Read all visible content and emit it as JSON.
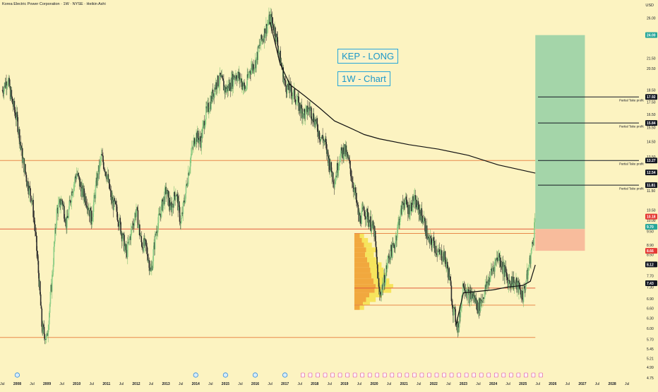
{
  "header": {
    "title": "Korea Electric Power Corporation · 1W · NYSE · Heikin Ashi",
    "currency": "USD"
  },
  "annotations": [
    "KEP - LONG",
    "1W - Chart"
  ],
  "colors": {
    "background": "#fcf3c1",
    "candle_up": "#8fcf8a",
    "candle_down": "#2b2b2b",
    "level_line": "#e8894a",
    "target_zone": "#9fd3a8",
    "stop_zone": "#f8b89a",
    "label_teal": "#26a69a",
    "label_red": "#e53935",
    "label_dark": "#131722",
    "volume_profile": "#f0a030"
  },
  "chart_data": {
    "type": "candlestick",
    "title": "Korea Electric Power Corporation · 1W · NYSE · Heikin Ashi",
    "x_range": [
      "2007-06",
      "2028-12"
    ],
    "y_range": [
      4.75,
      26.5
    ],
    "y_ticks": [
      26.0,
      24.0,
      21.5,
      20.5,
      18.5,
      17.5,
      16.5,
      15.5,
      14.5,
      13.5,
      12.5,
      11.5,
      10.5,
      10.0,
      9.5,
      8.9,
      8.5,
      8.1,
      7.7,
      7.3,
      6.9,
      6.6,
      6.3,
      6.0,
      5.7,
      5.45,
      5.21,
      4.99,
      4.75
    ],
    "y_tick_labels": [
      "26.00",
      "24.00",
      "21.50",
      "20.50",
      "18.50",
      "17.50",
      "16.50",
      "15.50",
      "14.50",
      "13.50",
      "12.50",
      "11.50",
      "10.50",
      "10.00",
      "9.50",
      "8.90",
      "8.50",
      "8.10",
      "7.70",
      "7.30",
      "6.90",
      "6.60",
      "6.30",
      "6.00",
      "5.70",
      "5.45",
      "5.21",
      "4.99",
      "4.75"
    ],
    "x_ticks": [
      "Jul",
      "2008",
      "Jul",
      "2009",
      "Jul",
      "2010",
      "Jul",
      "2011",
      "Jul",
      "2012",
      "Jul",
      "2013",
      "Jul",
      "2014",
      "Jul",
      "2015",
      "Jul",
      "2016",
      "Jul",
      "2017",
      "Jul",
      "2018",
      "Jul",
      "2019",
      "Jul",
      "2020",
      "Jul",
      "2021",
      "Jul",
      "2022",
      "Jul",
      "2023",
      "Jul",
      "2024",
      "Jul",
      "2025",
      "Jul",
      "2026",
      "Jul",
      "2027",
      "Jul",
      "2028",
      "Jul"
    ],
    "price_path": [
      [
        "2007-07",
        18.5
      ],
      [
        "2007-09",
        19.5
      ],
      [
        "2007-11",
        17.5
      ],
      [
        "2008-01",
        16.0
      ],
      [
        "2008-03",
        13.5
      ],
      [
        "2008-05",
        12.0
      ],
      [
        "2008-07",
        11.0
      ],
      [
        "2008-09",
        8.5
      ],
      [
        "2008-11",
        6.0
      ],
      [
        "2009-01",
        5.7
      ],
      [
        "2009-03",
        7.5
      ],
      [
        "2009-05",
        10.5
      ],
      [
        "2009-07",
        11.0
      ],
      [
        "2009-09",
        9.8
      ],
      [
        "2009-11",
        11.5
      ],
      [
        "2010-01",
        12.5
      ],
      [
        "2010-03",
        11.5
      ],
      [
        "2010-05",
        11.0
      ],
      [
        "2010-07",
        10.0
      ],
      [
        "2010-09",
        12.0
      ],
      [
        "2010-11",
        13.5
      ],
      [
        "2011-01",
        12.5
      ],
      [
        "2011-03",
        11.0
      ],
      [
        "2011-05",
        10.5
      ],
      [
        "2011-07",
        9.5
      ],
      [
        "2011-09",
        8.5
      ],
      [
        "2011-11",
        9.5
      ],
      [
        "2012-01",
        10.5
      ],
      [
        "2012-03",
        9.0
      ],
      [
        "2012-05",
        8.8
      ],
      [
        "2012-07",
        7.8
      ],
      [
        "2012-09",
        9.5
      ],
      [
        "2012-11",
        10.5
      ],
      [
        "2013-01",
        11.5
      ],
      [
        "2013-03",
        10.5
      ],
      [
        "2013-05",
        11.5
      ],
      [
        "2013-07",
        9.8
      ],
      [
        "2013-09",
        11.5
      ],
      [
        "2013-11",
        13.5
      ],
      [
        "2014-01",
        15.0
      ],
      [
        "2014-03",
        14.5
      ],
      [
        "2014-05",
        16.5
      ],
      [
        "2014-07",
        17.5
      ],
      [
        "2014-09",
        19.0
      ],
      [
        "2014-11",
        19.5
      ],
      [
        "2015-01",
        18.5
      ],
      [
        "2015-03",
        19.0
      ],
      [
        "2015-05",
        20.0
      ],
      [
        "2015-07",
        19.5
      ],
      [
        "2015-09",
        18.5
      ],
      [
        "2015-11",
        20.5
      ],
      [
        "2016-01",
        21.0
      ],
      [
        "2016-03",
        23.0
      ],
      [
        "2016-05",
        24.5
      ],
      [
        "2016-07",
        26.0
      ],
      [
        "2016-09",
        24.5
      ],
      [
        "2016-11",
        21.5
      ],
      [
        "2017-01",
        19.0
      ],
      [
        "2017-03",
        18.5
      ],
      [
        "2017-05",
        18.0
      ],
      [
        "2017-07",
        17.0
      ],
      [
        "2017-09",
        16.5
      ],
      [
        "2017-11",
        17.0
      ],
      [
        "2018-01",
        16.0
      ],
      [
        "2018-03",
        15.0
      ],
      [
        "2018-05",
        14.5
      ],
      [
        "2018-07",
        13.0
      ],
      [
        "2018-09",
        12.0
      ],
      [
        "2018-11",
        13.5
      ],
      [
        "2019-01",
        14.0
      ],
      [
        "2019-03",
        13.0
      ],
      [
        "2019-05",
        11.5
      ],
      [
        "2019-07",
        10.0
      ],
      [
        "2019-09",
        10.5
      ],
      [
        "2019-11",
        10.0
      ],
      [
        "2020-01",
        9.5
      ],
      [
        "2020-03",
        7.0
      ],
      [
        "2020-05",
        7.5
      ],
      [
        "2020-07",
        8.5
      ],
      [
        "2020-09",
        8.8
      ],
      [
        "2020-11",
        10.0
      ],
      [
        "2021-01",
        11.0
      ],
      [
        "2021-03",
        10.5
      ],
      [
        "2021-05",
        11.0
      ],
      [
        "2021-07",
        10.5
      ],
      [
        "2021-09",
        10.0
      ],
      [
        "2021-11",
        9.0
      ],
      [
        "2022-01",
        9.0
      ],
      [
        "2022-03",
        8.5
      ],
      [
        "2022-05",
        8.5
      ],
      [
        "2022-07",
        7.8
      ],
      [
        "2022-09",
        6.5
      ],
      [
        "2022-11",
        6.0
      ],
      [
        "2023-01",
        7.5
      ],
      [
        "2023-03",
        7.0
      ],
      [
        "2023-05",
        7.0
      ],
      [
        "2023-07",
        6.6
      ],
      [
        "2023-09",
        7.0
      ],
      [
        "2023-11",
        7.5
      ],
      [
        "2024-01",
        8.0
      ],
      [
        "2024-03",
        8.5
      ],
      [
        "2024-05",
        8.0
      ],
      [
        "2024-07",
        7.5
      ],
      [
        "2024-09",
        7.5
      ],
      [
        "2024-11",
        7.3
      ],
      [
        "2025-01",
        7.0
      ],
      [
        "2025-03",
        7.8
      ],
      [
        "2025-05",
        9.0
      ],
      [
        "2025-06",
        10.2
      ]
    ],
    "moving_average": [
      [
        "2016-07",
        25.5
      ],
      [
        "2016-11",
        21.0
      ],
      [
        "2017-03",
        19.0
      ],
      [
        "2017-09",
        18.0
      ],
      [
        "2018-03",
        17.0
      ],
      [
        "2018-09",
        16.0
      ],
      [
        "2019-03",
        15.5
      ],
      [
        "2019-09",
        15.0
      ],
      [
        "2020-03",
        14.7
      ],
      [
        "2021-03",
        14.3
      ],
      [
        "2022-03",
        14.0
      ],
      [
        "2023-03",
        13.6
      ],
      [
        "2024-03",
        13.0
      ],
      [
        "2025-06",
        12.5
      ]
    ],
    "short_average": [
      [
        "2022-10",
        6.1
      ],
      [
        "2023-01",
        7.1
      ],
      [
        "2023-07",
        7.15
      ],
      [
        "2024-01",
        7.2
      ],
      [
        "2024-07",
        7.3
      ],
      [
        "2025-01",
        7.35
      ],
      [
        "2025-04",
        7.5
      ],
      [
        "2025-06",
        8.1
      ]
    ],
    "horizontal_levels": [
      {
        "price": 13.27,
        "start": "2007-06",
        "end": "2025-06",
        "color": "#e8894a"
      },
      {
        "price": 9.6,
        "start": "2007-06",
        "end": "2025-06",
        "color": "#e05b3a"
      },
      {
        "price": 9.4,
        "start": "2019-05",
        "end": "2025-06",
        "color": "#e8894a"
      },
      {
        "price": 7.26,
        "start": "2019-05",
        "end": "2025-06",
        "color": "#e05b3a"
      },
      {
        "price": 6.7,
        "start": "2019-05",
        "end": "2025-06",
        "color": "#e8894a"
      },
      {
        "price": 5.75,
        "start": "2007-06",
        "end": "2025-06",
        "color": "#e8894a"
      }
    ],
    "take_profit_lines": [
      {
        "price": 17.92,
        "label": "Partial Take profit"
      },
      {
        "price": 15.84,
        "label": "Partial Take profit"
      },
      {
        "price": 13.27,
        "label": "Partial Take profit"
      },
      {
        "price": 11.81,
        "label": "Partial Take profit"
      }
    ],
    "trade_box": {
      "start": "2025-06",
      "end": "2027-02",
      "entry": 9.6,
      "target": 24.0,
      "stop": 8.66
    },
    "price_labels": [
      {
        "value": "24.00",
        "price": 24.0,
        "color": "#26a69a"
      },
      {
        "value": "17.92",
        "price": 17.92,
        "color": "#131722"
      },
      {
        "value": "15.84",
        "price": 15.84,
        "color": "#131722"
      },
      {
        "value": "13.27",
        "price": 13.27,
        "color": "#131722"
      },
      {
        "value": "12.54",
        "price": 12.54,
        "color": "#131722"
      },
      {
        "value": "11.81",
        "price": 11.81,
        "color": "#131722"
      },
      {
        "value": "10.18",
        "price": 10.18,
        "color": "#e53935"
      },
      {
        "value": "9.70",
        "price": 9.7,
        "color": "#26a69a"
      },
      {
        "value": "8.66",
        "price": 8.66,
        "color": "#e53935"
      },
      {
        "value": "8.12",
        "price": 8.12,
        "color": "#131722"
      },
      {
        "value": "7.43",
        "price": 7.43,
        "color": "#131722"
      }
    ],
    "volume_profile": {
      "start": "2019-05",
      "price_bins": [
        9.4,
        9.2,
        9.0,
        8.8,
        8.6,
        8.4,
        8.2,
        8.0,
        7.8,
        7.6,
        7.4,
        7.26,
        7.1,
        6.95,
        6.8,
        6.7
      ],
      "relative_volume": [
        0.25,
        0.35,
        0.45,
        0.55,
        0.5,
        0.6,
        0.7,
        0.75,
        0.8,
        0.9,
        1.0,
        0.95,
        0.7,
        0.55,
        0.4,
        0.25
      ]
    },
    "legend": "none",
    "grid": false,
    "y_scale": "log"
  }
}
